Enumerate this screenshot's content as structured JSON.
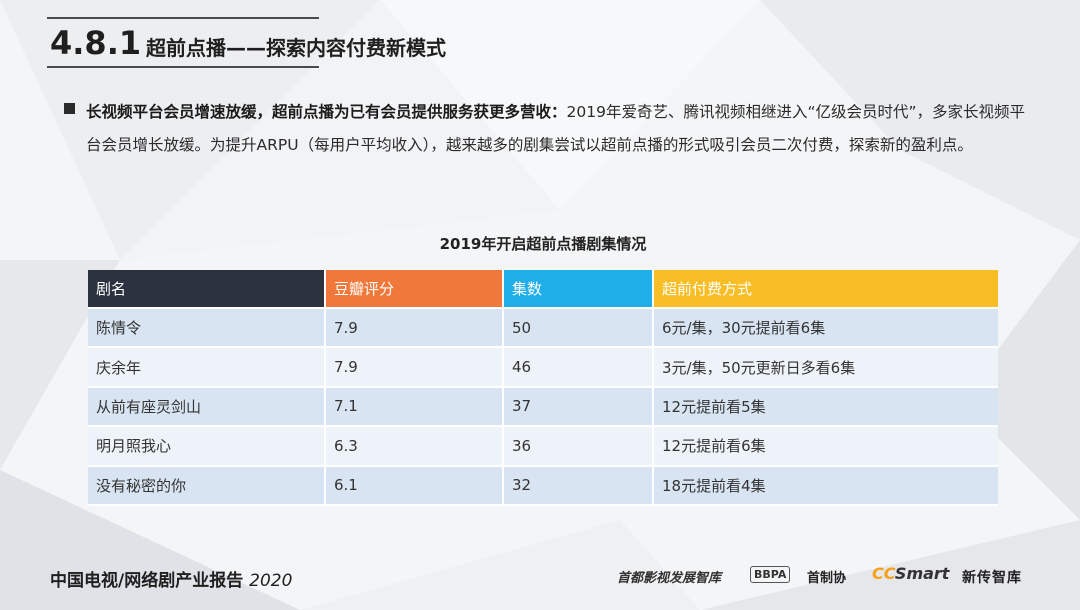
{
  "header": {
    "section_number": "4.8.1",
    "section_title": "超前点播——探索内容付费新模式"
  },
  "paragraph": {
    "lead": "长视频平台会员增速放缓，超前点播为已有会员提供服务获更多营收：",
    "body": "2019年爱奇艺、腾讯视频相继进入“亿级会员时代”，多家长视频平台会员增长放缓。为提升ARPU（每用户平均收入），越来越多的剧集尝试以超前点播的形式吸引会员二次付费，探索新的盈利点。"
  },
  "table": {
    "title": "2019年开启超前点播剧集情况",
    "headers": [
      "剧名",
      "豆瓣评分",
      "集数",
      "超前付费方式"
    ],
    "header_colors": [
      "#2c3240",
      "#f0783a",
      "#20aee8",
      "#f9bd26"
    ],
    "rows": [
      [
        "陈情令",
        "7.9",
        "50",
        "6元/集，30元提前看6集"
      ],
      [
        "庆余年",
        "7.9",
        "46",
        "3元/集，50元更新日多看6集"
      ],
      [
        "从前有座灵剑山",
        "7.1",
        "37",
        "12元提前看5集"
      ],
      [
        "明月照我心",
        "6.3",
        "36",
        "12元提前看6集"
      ],
      [
        "没有秘密的你",
        "6.1",
        "32",
        "18元提前看4集"
      ]
    ]
  },
  "footer": {
    "report_title": "中国电视/网络剧产业报告",
    "report_year": "2020",
    "logo_capital": "首都影视发展智库",
    "logo_bbpa_mark": "BBPA",
    "logo_bbpa_text": "首制协",
    "logo_ccsmart_cc": "CC",
    "logo_ccsmart_rest": "Smart",
    "logo_xinchuan": "新传智库"
  }
}
